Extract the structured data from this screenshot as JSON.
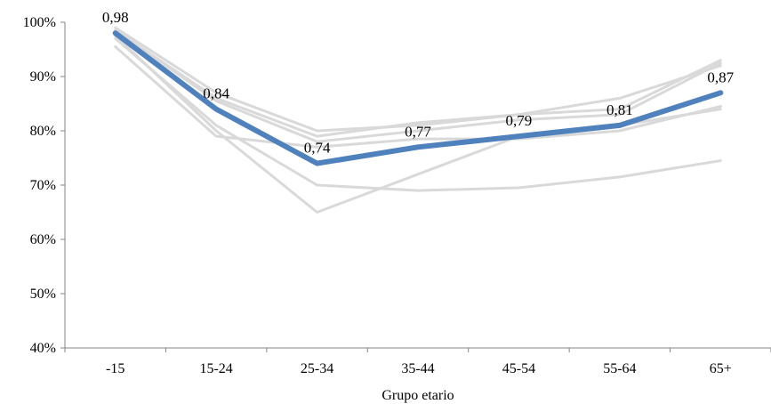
{
  "chart_data": {
    "type": "line",
    "title": "",
    "xlabel": "Grupo etario",
    "ylabel": "",
    "categories": [
      "-15",
      "15-24",
      "25-34",
      "35-44",
      "45-54",
      "55-64",
      "65+"
    ],
    "ylim": [
      0.4,
      1.0
    ],
    "yticks": [
      0.4,
      0.5,
      0.6,
      0.7,
      0.8,
      0.9,
      1.0
    ],
    "ytick_labels": [
      "40%",
      "50%",
      "60%",
      "70%",
      "80%",
      "90%",
      "100%"
    ],
    "grid": false,
    "legend": "none",
    "series": [
      {
        "role": "highlight",
        "color": "#4f81bd",
        "values": [
          0.98,
          0.84,
          0.74,
          0.77,
          0.79,
          0.81,
          0.87
        ],
        "labels": [
          "0,98",
          "0,84",
          "0,74",
          "0,77",
          "0,79",
          "0,81",
          "0,87"
        ]
      },
      {
        "role": "background",
        "color": "#d9d9d9",
        "values": [
          0.99,
          0.87,
          0.8,
          0.81,
          0.83,
          0.84,
          0.93
        ]
      },
      {
        "role": "background",
        "color": "#d9d9d9",
        "values": [
          0.985,
          0.86,
          0.79,
          0.815,
          0.83,
          0.86,
          0.92
        ]
      },
      {
        "role": "background",
        "color": "#d9d9d9",
        "values": [
          0.975,
          0.8,
          0.65,
          0.72,
          0.79,
          0.81,
          0.84
        ]
      },
      {
        "role": "background",
        "color": "#d9d9d9",
        "values": [
          0.955,
          0.79,
          0.77,
          0.785,
          0.785,
          0.8,
          0.845
        ]
      },
      {
        "role": "background",
        "color": "#d9d9d9",
        "values": [
          0.97,
          0.81,
          0.7,
          0.69,
          0.695,
          0.715,
          0.745
        ]
      },
      {
        "role": "background",
        "color": "#d9d9d9",
        "values": [
          0.985,
          0.855,
          0.78,
          0.8,
          0.82,
          0.83,
          0.925
        ]
      }
    ]
  }
}
